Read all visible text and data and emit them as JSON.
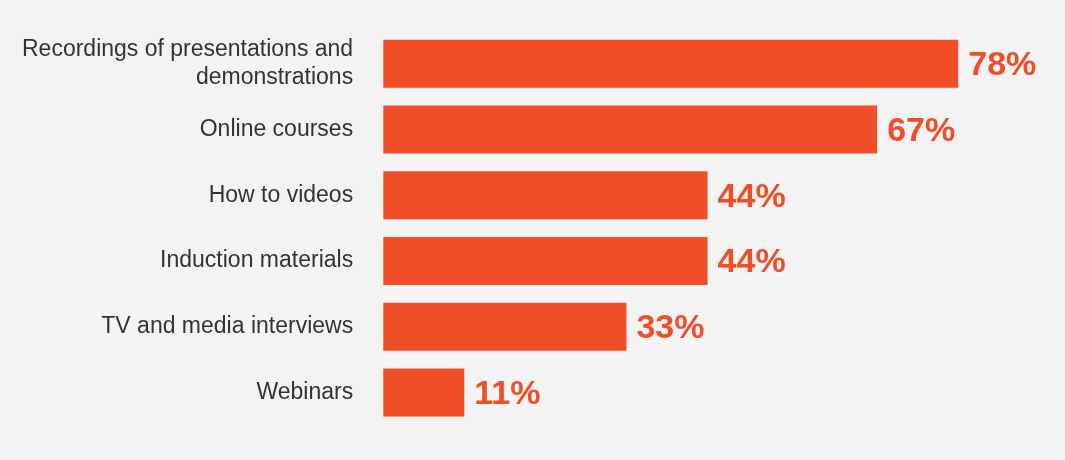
{
  "chart_data": {
    "type": "bar",
    "orientation": "horizontal",
    "categories": [
      "Recordings of presentations and demonstrations",
      "Online courses",
      "How to videos",
      "Induction materials",
      "TV and media interviews",
      "Webinars"
    ],
    "values": [
      78,
      67,
      44,
      44,
      33,
      11
    ],
    "value_labels": [
      "78%",
      "67%",
      "44%",
      "44%",
      "33%",
      "11%"
    ],
    "color": "#f04e29",
    "legend": false,
    "tick_labels": "y"
  }
}
